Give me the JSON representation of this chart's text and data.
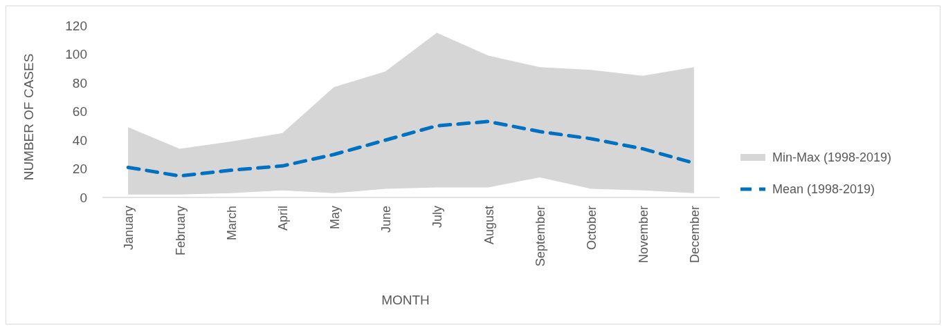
{
  "chart_data": {
    "type": "line",
    "xlabel": "MONTH",
    "ylabel": "NUMBER OF CASES",
    "categories": [
      "January",
      "February",
      "March",
      "April",
      "May",
      "June",
      "July",
      "August",
      "September",
      "October",
      "November",
      "December"
    ],
    "series": [
      {
        "name": "Min-Max (1998-2019)",
        "type": "area",
        "color": "#d6d6d6",
        "values": [
          null,
          null,
          null,
          null,
          null,
          null,
          null,
          null,
          null,
          null,
          null,
          null
        ],
        "lower": [
          2,
          2,
          3,
          5,
          3,
          6,
          7,
          7,
          14,
          6,
          5,
          3
        ],
        "upper": [
          49,
          34,
          39,
          45,
          77,
          88,
          115,
          99,
          91,
          89,
          85,
          91
        ]
      },
      {
        "name": "Mean (1998-2019)",
        "color": "#0070c0",
        "line_style": "dashed",
        "values": [
          21,
          15,
          19,
          22,
          30,
          40,
          50,
          53,
          46,
          41,
          34,
          24
        ]
      }
    ],
    "ylim": [
      0,
      120
    ],
    "yticks": [
      0,
      20,
      40,
      60,
      80,
      100,
      120
    ],
    "grid": false,
    "legend": "right"
  }
}
